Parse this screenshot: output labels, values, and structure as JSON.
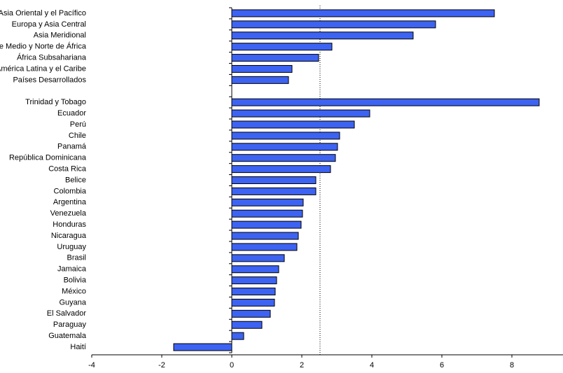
{
  "chart_data": {
    "type": "hbar",
    "categories": [
      "Asia Oriental y el Pacífico",
      "Europa y Asia Central",
      "Asia Meridional",
      "Oriente Medio y Norte de África",
      "África Subsahariana",
      "América Latina y el Caribe",
      "Países Desarrollados",
      null,
      "Trinidad y Tobago",
      "Ecuador",
      "Perú",
      "Chile",
      "Panamá",
      "República Dominicana",
      "Costa Rica",
      "Belice",
      "Colombia",
      "Argentina",
      "Venezuela",
      "Honduras",
      "Nicaragua",
      "Uruguay",
      "Brasil",
      "Jamaica",
      "Bolivia",
      "México",
      "Guyana",
      "El Salvador",
      "Paraguay",
      "Guatemala",
      "Haití"
    ],
    "values": [
      7.5,
      5.82,
      5.18,
      2.86,
      2.48,
      1.72,
      1.62,
      null,
      8.78,
      3.94,
      3.5,
      3.08,
      3.02,
      2.96,
      2.82,
      2.4,
      2.4,
      2.04,
      2.02,
      1.98,
      1.9,
      1.86,
      1.5,
      1.34,
      1.28,
      1.24,
      1.22,
      1.1,
      0.86,
      0.34,
      -1.66
    ],
    "color": "#3d63f2",
    "xlim": [
      -4,
      9.5
    ],
    "xticks": [
      -4,
      -2,
      0,
      2,
      4,
      6,
      8
    ],
    "reference_line": 2.52
  }
}
